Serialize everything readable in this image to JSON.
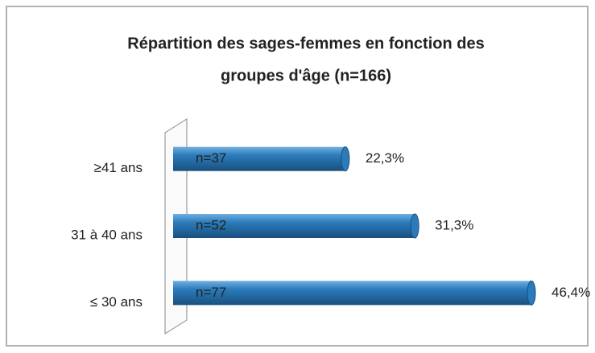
{
  "chart_data": {
    "type": "bar",
    "orientation": "horizontal",
    "title": "Répartition des sages-femmes en fonction des",
    "subtitle": "groupes d'âge (n=166)",
    "categories": [
      "≥41 ans",
      "31 à 40 ans",
      "≤ 30 ans"
    ],
    "values": [
      22.3,
      31.3,
      46.4
    ],
    "value_labels": [
      "22,3%",
      "31,3%",
      "46,4%"
    ],
    "annotations": [
      "n=37",
      "n=52",
      "n=77"
    ],
    "color": "#2b7bbb"
  }
}
